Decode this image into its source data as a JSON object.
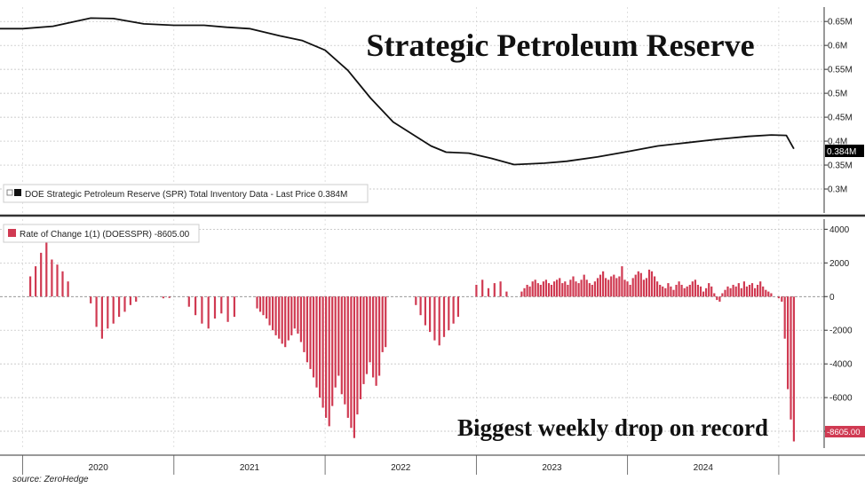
{
  "title": "Strategic Petroleum Reserve",
  "annotation": "Biggest weekly drop on record",
  "source": "source: ZeroHedge",
  "colors": {
    "line": "#111111",
    "bar": "#d03a52",
    "price_tag_top": "#000000",
    "price_tag_bottom": "#d03a52"
  },
  "chart_data": [
    {
      "type": "line",
      "legend": "DOE Strategic Petroleum Reserve (SPR) Total Inventory Data - Last Price 0.384M",
      "last_label": "0.384M",
      "ylim": [
        0.25,
        0.68
      ],
      "yticks": [
        0.3,
        0.35,
        0.4,
        0.45,
        0.5,
        0.55,
        0.6,
        0.65
      ],
      "ytick_labels": [
        "0.3M",
        "0.35M",
        "0.4M",
        "0.45M",
        "0.5M",
        "0.55M",
        "0.6M",
        "0.65M"
      ],
      "x": [
        2019.85,
        2020.0,
        2020.2,
        2020.45,
        2020.6,
        2020.8,
        2021.0,
        2021.2,
        2021.35,
        2021.5,
        2021.7,
        2021.85,
        2022.0,
        2022.15,
        2022.3,
        2022.45,
        2022.6,
        2022.7,
        2022.8,
        2022.95,
        2023.1,
        2023.25,
        2023.45,
        2023.6,
        2023.8,
        2024.0,
        2024.2,
        2024.4,
        2024.6,
        2024.8,
        2024.95,
        2025.05,
        2025.1
      ],
      "values": [
        0.635,
        0.635,
        0.64,
        0.657,
        0.656,
        0.645,
        0.642,
        0.642,
        0.638,
        0.635,
        0.62,
        0.61,
        0.59,
        0.548,
        0.49,
        0.44,
        0.41,
        0.39,
        0.377,
        0.375,
        0.364,
        0.351,
        0.354,
        0.358,
        0.367,
        0.378,
        0.39,
        0.397,
        0.404,
        0.41,
        0.413,
        0.412,
        0.384
      ]
    },
    {
      "type": "bar",
      "legend": "Rate of Change 1(1) (DOESSPR) -8605.00",
      "last_label": "-8605.00",
      "ylim": [
        -9000,
        4600
      ],
      "yticks": [
        -8000,
        -6000,
        -4000,
        -2000,
        0,
        2000,
        4000
      ],
      "ytick_labels": [
        "-8000",
        "-6000",
        "-4000",
        "-2000",
        "0",
        "2000",
        "4000"
      ],
      "segments": [
        {
          "x0": 2020.05,
          "x1": 2020.3,
          "values": [
            1200,
            1800,
            2600,
            3800,
            2200,
            1900,
            1500,
            900
          ]
        },
        {
          "x0": 2020.45,
          "x1": 2020.75,
          "values": [
            -400,
            -1800,
            -2500,
            -1900,
            -1600,
            -1200,
            -900,
            -500,
            -300
          ]
        },
        {
          "x0": 2020.93,
          "x1": 2020.97,
          "values": [
            -100,
            -80
          ]
        },
        {
          "x0": 2021.1,
          "x1": 2021.4,
          "values": [
            -600,
            -1100,
            -1600,
            -1900,
            -1300,
            -1000,
            -1500,
            -1200
          ]
        },
        {
          "x0": 2021.55,
          "x1": 2022.4,
          "values": [
            -700,
            -900,
            -1100,
            -1300,
            -1700,
            -2000,
            -2300,
            -2500,
            -2800,
            -3000,
            -2600,
            -2300,
            -1900,
            -2200,
            -2700,
            -3300,
            -3900,
            -4300,
            -4800,
            -5400,
            -6000,
            -6600,
            -7200,
            -7700,
            -6500,
            -5400,
            -4700,
            -5800,
            -6400,
            -7200,
            -7800,
            -8400,
            -7000,
            -6100,
            -5200,
            -4600,
            -3900,
            -4800,
            -5300,
            -4700,
            -3300,
            -3000
          ]
        },
        {
          "x0": 2022.6,
          "x1": 2022.88,
          "values": [
            -500,
            -1100,
            -1700,
            -2100,
            -2600,
            -2900,
            -2400,
            -2000,
            -1600,
            -1200
          ]
        },
        {
          "x0": 2023.0,
          "x1": 2023.2,
          "values": [
            700,
            1000,
            500,
            800,
            900,
            300
          ]
        },
        {
          "x0": 2023.3,
          "x1": 2024.95,
          "values": [
            300,
            500,
            700,
            600,
            900,
            1000,
            800,
            700,
            900,
            1000,
            800,
            700,
            900,
            1000,
            1100,
            800,
            900,
            700,
            1000,
            1200,
            900,
            800,
            1000,
            1300,
            1000,
            800,
            700,
            900,
            1100,
            1300,
            1500,
            1100,
            1000,
            1200,
            1300,
            1100,
            1200,
            1800,
            1000,
            900,
            700,
            1100,
            1300,
            1500,
            1400,
            1000,
            1100,
            1600,
            1500,
            1200,
            900,
            700,
            600,
            500,
            800,
            600,
            400,
            700,
            900,
            700,
            500,
            600,
            700,
            900,
            1000,
            700,
            600,
            300,
            500,
            800,
            600,
            200,
            -200,
            -300,
            200,
            400,
            600,
            500,
            700,
            600,
            800,
            500,
            900,
            600,
            700,
            800,
            500,
            700,
            900,
            600,
            400,
            300,
            200
          ]
        },
        {
          "x0": 2025.0,
          "x1": 2025.1,
          "values": [
            -100,
            -300,
            -2500,
            -5500,
            -7300,
            -8605
          ]
        }
      ]
    }
  ],
  "x_axis": {
    "range": [
      2019.85,
      2025.3
    ],
    "year_labels": [
      "2020",
      "2021",
      "2022",
      "2023",
      "2024"
    ],
    "year_centers": [
      2020.5,
      2021.5,
      2022.5,
      2023.5,
      2024.5
    ],
    "year_boundaries": [
      2020.0,
      2021.0,
      2022.0,
      2023.0,
      2024.0,
      2025.0
    ]
  }
}
